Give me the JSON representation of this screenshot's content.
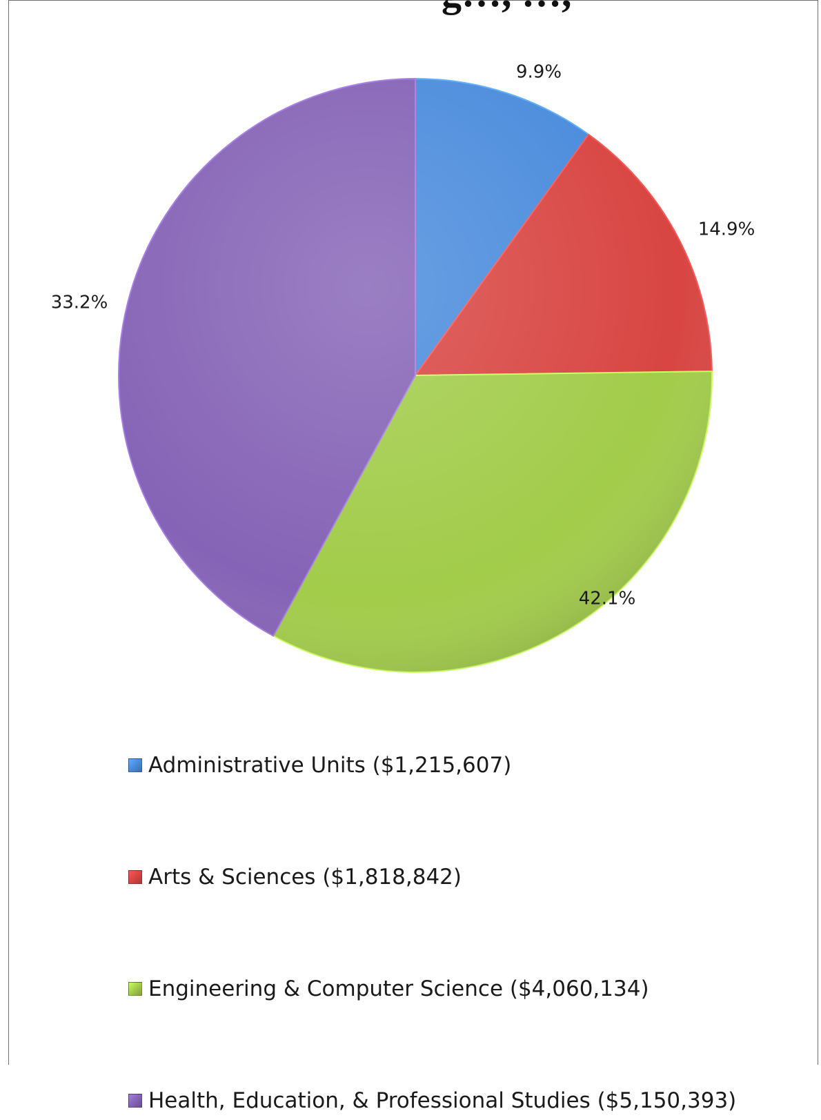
{
  "chart_data": {
    "type": "pie",
    "title": "",
    "title_fragment": "g…, …,",
    "slices": [
      {
        "label": "Administrative Units ($1,215,607)",
        "value": 1215607,
        "percent_label": "9.9%",
        "color": "#4a8bdc"
      },
      {
        "label": "Arts & Sciences ($1,818,842)",
        "value": 1818842,
        "percent_label": "14.9%",
        "color": "#d84542"
      },
      {
        "label": "Engineering & Computer Science ($4,060,134)",
        "value": 4060134,
        "percent_label": "33.2%",
        "color": "#a2cc4a"
      },
      {
        "label": "Health, Education, & Professional Studies ($5,150,393)",
        "value": 5150393,
        "percent_label": "42.1%",
        "color": "#8563b6"
      }
    ],
    "start_angle": "12 o'clock",
    "direction": "clockwise",
    "legend_position": "bottom"
  }
}
